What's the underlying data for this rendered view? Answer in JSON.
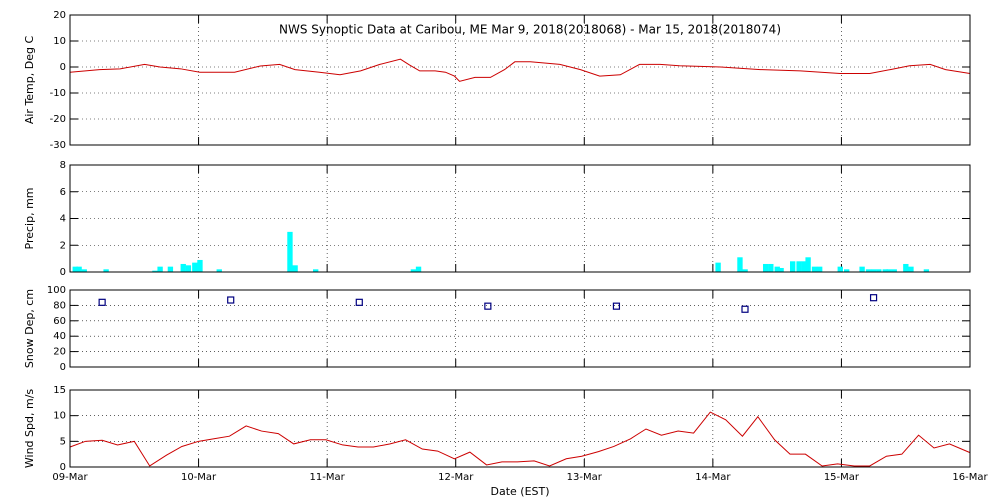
{
  "chart_data": [
    {
      "type": "line",
      "title": "NWS Synoptic Data at Caribou, ME   Mar  9, 2018(2018068) - Mar 15, 2018(2018074)",
      "ylabel": "Air Temp, Deg C",
      "xlim": [
        0,
        7
      ],
      "xticks": [
        0,
        1,
        2,
        3,
        4,
        5,
        6,
        7
      ],
      "ylim": [
        -30,
        20
      ],
      "yticks": [
        -30,
        -20,
        -10,
        0,
        10,
        20
      ],
      "grid": true,
      "series": [
        {
          "name": "Air Temp",
          "color": "#cc0000",
          "x": [
            0,
            0.23,
            0.39,
            0.58,
            0.7,
            0.86,
            1.01,
            1.28,
            1.48,
            1.63,
            1.75,
            1.94,
            2.1,
            2.26,
            2.41,
            2.57,
            2.64,
            2.72,
            2.84,
            2.92,
            2.99,
            3.03,
            3.15,
            3.27,
            3.38,
            3.46,
            3.58,
            3.81,
            3.97,
            4.12,
            4.28,
            4.43,
            4.59,
            4.74,
            5.06,
            5.37,
            5.68,
            5.99,
            6.22,
            6.38,
            6.53,
            6.69,
            6.81,
            7.0
          ],
          "values": [
            -2,
            -1,
            -0.7,
            1,
            0,
            -0.7,
            -2,
            -2,
            0.4,
            1,
            -1,
            -2,
            -3,
            -1.5,
            1,
            3,
            0.8,
            -1.5,
            -1.5,
            -2,
            -3.5,
            -5.5,
            -4,
            -4,
            -1,
            2,
            2,
            1,
            -1,
            -3.5,
            -3,
            1,
            1,
            0.5,
            0,
            -1,
            -1.5,
            -2.5,
            -2.5,
            -1,
            0.5,
            1,
            -1,
            -2.5
          ]
        }
      ]
    },
    {
      "type": "bar",
      "ylabel": "Precip, mm",
      "xlim": [
        0,
        7
      ],
      "xticks": [
        0,
        1,
        2,
        3,
        4,
        5,
        6,
        7
      ],
      "ylim": [
        0,
        8
      ],
      "yticks": [
        0,
        2,
        4,
        6,
        8
      ],
      "grid": true,
      "series": [
        {
          "name": "Precip",
          "color": "#00ffff",
          "x": [
            0.02,
            0.05,
            0.09,
            0.26,
            0.64,
            0.68,
            0.76,
            0.86,
            0.9,
            0.95,
            0.99,
            1.14,
            1.69,
            1.73,
            1.89,
            2.65,
            2.69,
            5.02,
            5.19,
            5.23,
            5.39,
            5.43,
            5.48,
            5.51,
            5.6,
            5.65,
            5.69,
            5.72,
            5.77,
            5.81,
            5.97,
            6.02,
            6.14,
            6.19,
            6.23,
            6.27,
            6.32,
            6.35,
            6.39,
            6.48,
            6.52,
            6.64
          ],
          "values": [
            0.4,
            0.4,
            0.2,
            0.2,
            0.1,
            0.4,
            0.4,
            0.6,
            0.5,
            0.7,
            0.9,
            0.2,
            3.0,
            0.5,
            0.2,
            0.2,
            0.4,
            0.7,
            1.1,
            0.2,
            0.6,
            0.6,
            0.4,
            0.3,
            0.8,
            0.8,
            0.8,
            1.1,
            0.4,
            0.4,
            0.4,
            0.2,
            0.4,
            0.2,
            0.2,
            0.2,
            0.2,
            0.2,
            0.2,
            0.6,
            0.4,
            0.2
          ]
        }
      ]
    },
    {
      "type": "scatter",
      "ylabel": "Snow Dep, cm",
      "xlim": [
        0,
        7
      ],
      "xticks": [
        0,
        1,
        2,
        3,
        4,
        5,
        6,
        7
      ],
      "ylim": [
        0,
        100
      ],
      "yticks": [
        0,
        20,
        40,
        60,
        80,
        100
      ],
      "grid": true,
      "series": [
        {
          "name": "Snow Depth",
          "color": "#000080",
          "x": [
            0.25,
            1.25,
            2.25,
            3.25,
            4.25,
            5.25,
            6.25
          ],
          "values": [
            84,
            87,
            84,
            79,
            79,
            75,
            90
          ]
        }
      ]
    },
    {
      "type": "line",
      "ylabel": "Wind Spd, m/s",
      "xlabel": "Date (EST)",
      "xlim": [
        0,
        7
      ],
      "xticks": [
        {
          "value": 0,
          "label": "09-Mar"
        },
        {
          "value": 1,
          "label": "10-Mar"
        },
        {
          "value": 2,
          "label": "11-Mar"
        },
        {
          "value": 3,
          "label": "12-Mar"
        },
        {
          "value": 4,
          "label": "13-Mar"
        },
        {
          "value": 5,
          "label": "14-Mar"
        },
        {
          "value": 6,
          "label": "15-Mar"
        },
        {
          "value": 7,
          "label": "16-Mar"
        }
      ],
      "ylim": [
        0,
        15
      ],
      "yticks": [
        0,
        5,
        10,
        15
      ],
      "grid": true,
      "series": [
        {
          "name": "Wind Speed",
          "color": "#cc0000",
          "x": [
            0,
            0.12,
            0.25,
            0.37,
            0.5,
            0.62,
            0.75,
            0.87,
            1.0,
            1.12,
            1.24,
            1.37,
            1.49,
            1.62,
            1.74,
            1.87,
            1.99,
            2.12,
            2.24,
            2.36,
            2.49,
            2.61,
            2.74,
            2.86,
            2.99,
            3.11,
            3.24,
            3.36,
            3.48,
            3.61,
            3.73,
            3.86,
            3.98,
            4.11,
            4.23,
            4.36,
            4.48,
            4.6,
            4.73,
            4.85,
            4.98,
            5.1,
            5.23,
            5.35,
            5.48,
            5.6,
            5.72,
            5.85,
            5.97,
            6.1,
            6.22,
            6.35,
            6.47,
            6.6,
            6.72,
            6.84,
            7.0
          ],
          "values": [
            3.9,
            5,
            5.2,
            4.3,
            5,
            0.2,
            2.3,
            4,
            5,
            5.5,
            6,
            8,
            7,
            6.5,
            4.5,
            5.3,
            5.3,
            4.3,
            3.9,
            3.9,
            4.5,
            5.3,
            3.5,
            3.1,
            1.6,
            2.9,
            0.4,
            1,
            1,
            1.2,
            0.2,
            1.6,
            2.1,
            3,
            4,
            5.5,
            7.4,
            6.2,
            7,
            6.6,
            10.7,
            9.2,
            6,
            9.8,
            5.3,
            2.5,
            2.5,
            0.2,
            0.6,
            0.2,
            0.2,
            2.1,
            2.5,
            6.2,
            3.7,
            4.5,
            2.8
          ]
        }
      ]
    }
  ]
}
